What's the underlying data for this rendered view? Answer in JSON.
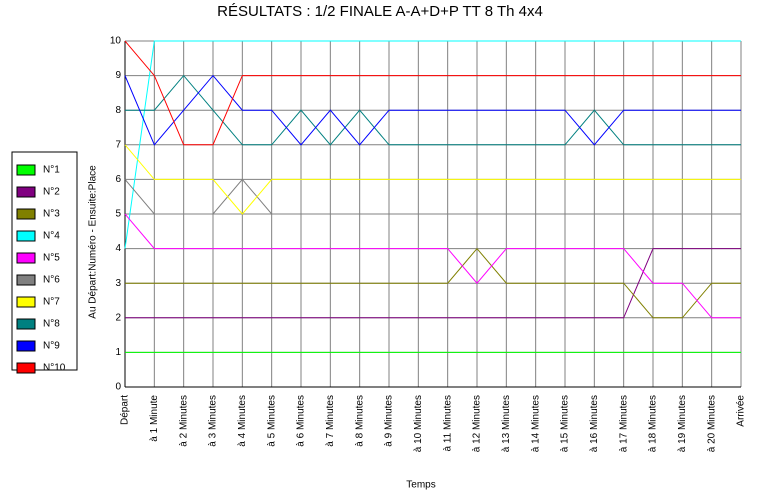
{
  "chart_data": {
    "type": "line",
    "title": "RÉSULTATS : 1/2 FINALE A-A+D+P TT 8 Th 4x4",
    "x_label": "Temps",
    "y_label": "Au Départ:Numéro - Ensuite:Place",
    "categories": [
      "Départ",
      "à 1 Minute",
      "à 2 Minutes",
      "à 3 Minutes",
      "à 4 Minutes",
      "à 5 Minutes",
      "à 6 Minutes",
      "à 7 Minutes",
      "à 8 Minutes",
      "à 9 Minutes",
      "à 10 Minutes",
      "à 11 Minutes",
      "à 12 Minutes",
      "à 13 Minutes",
      "à 14 Minutes",
      "à 15 Minutes",
      "à 16 Minutes",
      "à 17 Minutes",
      "à 18 Minutes",
      "à 19 Minutes",
      "à 20 Minutes",
      "Arrivée"
    ],
    "ylim": [
      0,
      10
    ],
    "yticks": [
      0,
      1,
      2,
      3,
      4,
      5,
      6,
      7,
      8,
      9,
      10
    ],
    "grid": true,
    "legend": "left",
    "series": [
      {
        "name": "N°1",
        "color": "#00ff00",
        "values": [
          1,
          1,
          1,
          1,
          1,
          1,
          1,
          1,
          1,
          1,
          1,
          1,
          1,
          1,
          1,
          1,
          1,
          1,
          1,
          1,
          1,
          1
        ]
      },
      {
        "name": "N°2",
        "color": "#800080",
        "values": [
          2,
          2,
          2,
          2,
          2,
          2,
          2,
          2,
          2,
          2,
          2,
          2,
          2,
          2,
          2,
          2,
          2,
          2,
          4,
          4,
          4,
          4
        ]
      },
      {
        "name": "N°3",
        "color": "#808000",
        "values": [
          3,
          3,
          3,
          3,
          3,
          3,
          3,
          3,
          3,
          3,
          3,
          3,
          4,
          3,
          3,
          3,
          3,
          3,
          2,
          2,
          3,
          3
        ]
      },
      {
        "name": "N°4",
        "color": "#00ffff",
        "values": [
          4,
          10,
          10,
          10,
          10,
          10,
          10,
          10,
          10,
          10,
          10,
          10,
          10,
          10,
          10,
          10,
          10,
          10,
          10,
          10,
          10,
          10
        ]
      },
      {
        "name": "N°5",
        "color": "#ff00ff",
        "values": [
          5,
          4,
          4,
          4,
          4,
          4,
          4,
          4,
          4,
          4,
          4,
          4,
          3,
          4,
          4,
          4,
          4,
          4,
          3,
          3,
          2,
          2
        ]
      },
      {
        "name": "N°6",
        "color": "#808080",
        "values": [
          6,
          5,
          5,
          5,
          6,
          5,
          5,
          5,
          5,
          5,
          5,
          5,
          5,
          5,
          5,
          5,
          5,
          5,
          5,
          5,
          5,
          5
        ]
      },
      {
        "name": "N°7",
        "color": "#ffff00",
        "values": [
          7,
          6,
          6,
          6,
          5,
          6,
          6,
          6,
          6,
          6,
          6,
          6,
          6,
          6,
          6,
          6,
          6,
          6,
          6,
          6,
          6,
          6
        ]
      },
      {
        "name": "N°8",
        "color": "#008080",
        "values": [
          8,
          8,
          9,
          8,
          7,
          7,
          8,
          7,
          8,
          7,
          7,
          7,
          7,
          7,
          7,
          7,
          8,
          7,
          7,
          7,
          7,
          7
        ]
      },
      {
        "name": "N°9",
        "color": "#0000ff",
        "values": [
          9,
          7,
          8,
          9,
          8,
          8,
          7,
          8,
          7,
          8,
          8,
          8,
          8,
          8,
          8,
          8,
          7,
          8,
          8,
          8,
          8,
          8
        ]
      },
      {
        "name": "N°10",
        "color": "#ff0000",
        "values": [
          10,
          9,
          7,
          7,
          9,
          9,
          9,
          9,
          9,
          9,
          9,
          9,
          9,
          9,
          9,
          9,
          9,
          9,
          9,
          9,
          9,
          9
        ]
      }
    ]
  }
}
